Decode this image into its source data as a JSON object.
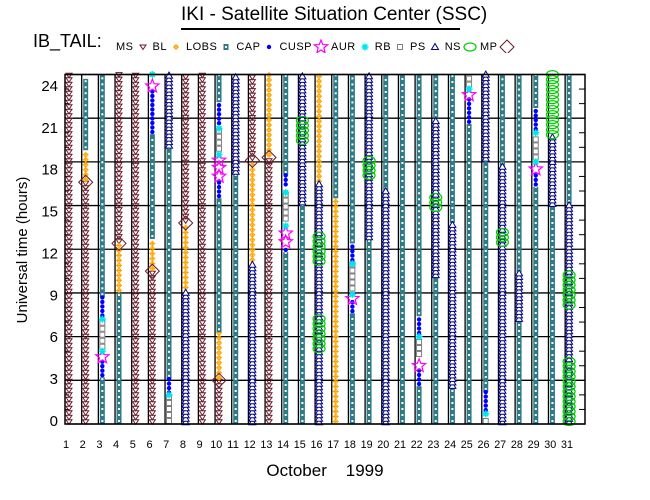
{
  "header": {
    "title": "IKI - Satellite Situation Center (SSC)",
    "legend_title": "IB_TAIL:"
  },
  "legend": [
    {
      "label": "MS",
      "region": "MS"
    },
    {
      "label": "BL",
      "region": "BL"
    },
    {
      "label": "LOBS",
      "region": "LOBS"
    },
    {
      "label": "CAP",
      "region": "CAP"
    },
    {
      "label": "CUSP",
      "region": "CUSP"
    },
    {
      "label": "AUR",
      "region": "AUR"
    },
    {
      "label": "RB",
      "region": "RB"
    },
    {
      "label": "PS",
      "region": "PS"
    },
    {
      "label": "NS",
      "region": "NS"
    },
    {
      "label": "MP",
      "region": "MP"
    }
  ],
  "colors": {
    "MS": "#6b1a2a",
    "BL": "#ffa500",
    "LOBS": "#2e7a85",
    "CAP": "#0000ff",
    "CUSP": "#ff00ff",
    "AUR": "#00e5ee",
    "RB": "#808080",
    "PS": "#000080",
    "NS": "#00cc00",
    "MP": "#6b1a2a"
  },
  "chart_data": {
    "type": "scatter",
    "title": "IKI - Satellite Situation Center (SSC)",
    "xlabel": "October    1999",
    "ylabel": "Universal time (hours)",
    "xlim": [
      1,
      31
    ],
    "ylim": [
      0,
      24
    ],
    "yticks": [
      0,
      3,
      6,
      9,
      12,
      15,
      18,
      21,
      24
    ],
    "xticks": [
      "1",
      "2",
      "3",
      "4",
      "5",
      "6",
      "7",
      "8",
      "9",
      "10",
      "11",
      "12",
      "13",
      "14",
      "15",
      "16",
      "17",
      "18",
      "19",
      "20",
      "21",
      "22",
      "23",
      "24",
      "25",
      "26",
      "27",
      "28",
      "29",
      "30",
      "31"
    ],
    "grid": true,
    "days": [
      {
        "day": 1,
        "segments": [
          [
            "MS",
            0,
            24
          ]
        ],
        "points": []
      },
      {
        "day": 2,
        "segments": [
          [
            "MS",
            0,
            16.6
          ],
          [
            "BL",
            16.6,
            18.8
          ],
          [
            "LOBS",
            18.8,
            23.7
          ]
        ],
        "points": [
          [
            "MP",
            16.6
          ]
        ]
      },
      {
        "day": 3,
        "segments": [
          [
            "LOBS",
            0,
            3.2
          ],
          [
            "CAP",
            3.2,
            4.5
          ],
          [
            "RB",
            5.1,
            7.0
          ],
          [
            "CAP",
            7.3,
            8.7
          ],
          [
            "LOBS",
            8.7,
            24
          ]
        ],
        "points": [
          [
            "CUSP",
            4.6
          ],
          [
            "AUR",
            5.0
          ],
          [
            "AUR",
            7.2
          ]
        ]
      },
      {
        "day": 4,
        "segments": [
          [
            "LOBS",
            0,
            9.0
          ],
          [
            "BL",
            9.0,
            12.4
          ],
          [
            "MS",
            12.4,
            24
          ]
        ],
        "points": [
          [
            "MP",
            12.4
          ]
        ]
      },
      {
        "day": 5,
        "segments": [
          [
            "MS",
            0,
            24
          ]
        ],
        "points": []
      },
      {
        "day": 6,
        "segments": [
          [
            "MS",
            0,
            10.5
          ],
          [
            "BL",
            10.5,
            12.7
          ],
          [
            "LOBS",
            12.7,
            19.9
          ],
          [
            "CAP",
            19.9,
            23.0
          ]
        ],
        "points": [
          [
            "MP",
            10.5
          ],
          [
            "CUSP",
            23.2
          ],
          [
            "AUR",
            24
          ]
        ]
      },
      {
        "day": 7,
        "segments": [
          [
            "RB",
            0,
            1.9
          ],
          [
            "CAP",
            2.0,
            3.1
          ],
          [
            "LOBS",
            3.1,
            19.0
          ],
          [
            "PS",
            19.0,
            24
          ]
        ],
        "points": [
          [
            "AUR",
            2.0
          ]
        ]
      },
      {
        "day": 8,
        "segments": [
          [
            "PS",
            0,
            9.2
          ],
          [
            "BL",
            9.2,
            13.8
          ],
          [
            "MS",
            13.8,
            24
          ]
        ],
        "points": [
          [
            "MP",
            13.8
          ]
        ]
      },
      {
        "day": 9,
        "segments": [
          [
            "MS",
            0,
            24
          ]
        ],
        "points": []
      },
      {
        "day": 10,
        "segments": [
          [
            "MS",
            0,
            3.0
          ],
          [
            "BL",
            3.0,
            6.3
          ],
          [
            "LOBS",
            6.3,
            15.5
          ],
          [
            "CAP",
            15.5,
            16.7
          ],
          [
            "RB",
            18.7,
            20.2
          ],
          [
            "CAP",
            20.5,
            22.1
          ],
          [
            "LOBS",
            22.1,
            24
          ]
        ],
        "points": [
          [
            "MP",
            3.0
          ],
          [
            "CUSP",
            17.0
          ],
          [
            "CUSP",
            17.6
          ],
          [
            "CUSP",
            18.1
          ],
          [
            "AUR",
            18.5
          ],
          [
            "AUR",
            20.3
          ]
        ]
      },
      {
        "day": 11,
        "segments": [
          [
            "LOBS",
            0,
            17.2
          ],
          [
            "PS",
            17.2,
            24
          ]
        ],
        "points": []
      },
      {
        "day": 12,
        "segments": [
          [
            "PS",
            0,
            11.1
          ],
          [
            "BL",
            11.1,
            18.1
          ],
          [
            "MS",
            18.1,
            24
          ]
        ],
        "points": [
          [
            "MP",
            18.1
          ]
        ]
      },
      {
        "day": 13,
        "segments": [
          [
            "MS",
            0,
            18.3
          ],
          [
            "BL",
            18.3,
            24
          ]
        ],
        "points": [
          [
            "MP",
            18.3
          ]
        ]
      },
      {
        "day": 14,
        "segments": [
          [
            "LOBS",
            0,
            11.8
          ],
          [
            "CAP",
            11.8,
            12.1
          ],
          [
            "RB",
            13.9,
            15.9
          ],
          [
            "CAP",
            16.3,
            17.1
          ],
          [
            "LOBS",
            17.1,
            24
          ]
        ],
        "points": [
          [
            "CUSP",
            12.5
          ],
          [
            "CUSP",
            13.1
          ],
          [
            "AUR",
            13.6
          ],
          [
            "AUR",
            15.9
          ]
        ]
      },
      {
        "day": 15,
        "segments": [
          [
            "LOBS",
            0,
            15.1
          ],
          [
            "PS",
            15.1,
            24
          ],
          [
            "NS",
            19.3,
            21.0
          ]
        ],
        "points": []
      },
      {
        "day": 16,
        "segments": [
          [
            "PS",
            0,
            16.5
          ],
          [
            "BL",
            16.5,
            24
          ],
          [
            "NS",
            11.0,
            12.9
          ],
          [
            "NS",
            5.0,
            7.3
          ]
        ],
        "points": []
      },
      {
        "day": 17,
        "segments": [
          [
            "BL",
            0,
            15.5
          ],
          [
            "LOBS",
            15.5,
            24
          ]
        ],
        "points": []
      },
      {
        "day": 18,
        "segments": [
          [
            "LOBS",
            0,
            7.6
          ],
          [
            "CAP",
            7.6,
            8.4
          ],
          [
            "RB",
            9.1,
            11.0
          ],
          [
            "CAP",
            11.1,
            12.4
          ],
          [
            "LOBS",
            12.4,
            24
          ]
        ],
        "points": [
          [
            "CUSP",
            8.6
          ],
          [
            "AUR",
            8.9
          ],
          [
            "AUR",
            11.0
          ]
        ]
      },
      {
        "day": 19,
        "segments": [
          [
            "LOBS",
            0,
            12.7
          ],
          [
            "PS",
            12.7,
            24
          ],
          [
            "NS",
            16.9,
            18.2
          ]
        ],
        "points": []
      },
      {
        "day": 20,
        "segments": [
          [
            "PS",
            0,
            16.0
          ],
          [
            "LOBS",
            16.0,
            24
          ]
        ],
        "points": []
      },
      {
        "day": 21,
        "segments": [
          [
            "LOBS",
            0,
            24
          ]
        ],
        "points": []
      },
      {
        "day": 22,
        "segments": [
          [
            "LOBS",
            0,
            2.6
          ],
          [
            "CAP",
            2.6,
            3.8
          ],
          [
            "RB",
            4.6,
            5.9
          ],
          [
            "CAP",
            6.1,
            7.4
          ],
          [
            "LOBS",
            7.4,
            24
          ]
        ],
        "points": [
          [
            "CUSP",
            4.0
          ],
          [
            "AUR",
            6.0
          ]
        ]
      },
      {
        "day": 23,
        "segments": [
          [
            "LOBS",
            0,
            10.1
          ],
          [
            "PS",
            10.1,
            21.0
          ],
          [
            "LOBS",
            21.0,
            24
          ],
          [
            "NS",
            14.7,
            15.9
          ]
        ],
        "points": []
      },
      {
        "day": 24,
        "segments": [
          [
            "LOBS",
            0,
            2.5
          ],
          [
            "PS",
            2.5,
            13.8
          ],
          [
            "LOBS",
            13.8,
            24
          ]
        ],
        "points": []
      },
      {
        "day": 25,
        "segments": [
          [
            "LOBS",
            0,
            20.6
          ],
          [
            "CAP",
            20.6,
            22.3
          ],
          [
            "RB",
            23.1,
            24
          ]
        ],
        "points": [
          [
            "CUSP",
            22.6
          ],
          [
            "AUR",
            23.0
          ]
        ]
      },
      {
        "day": 26,
        "segments": [
          [
            "RB",
            0,
            0.6
          ],
          [
            "CAP",
            0.8,
            2.2
          ],
          [
            "LOBS",
            2.2,
            18.1
          ],
          [
            "PS",
            18.1,
            24
          ]
        ],
        "points": [
          [
            "AUR",
            0.7
          ]
        ]
      },
      {
        "day": 27,
        "segments": [
          [
            "PS",
            0,
            17.7
          ],
          [
            "LOBS",
            17.7,
            24
          ],
          [
            "NS",
            12.3,
            13.5
          ]
        ],
        "points": []
      },
      {
        "day": 28,
        "segments": [
          [
            "LOBS",
            0,
            7.1
          ],
          [
            "PS",
            7.1,
            10.4
          ],
          [
            "LOBS",
            10.4,
            24
          ]
        ],
        "points": []
      },
      {
        "day": 29,
        "segments": [
          [
            "LOBS",
            0,
            16.3
          ],
          [
            "CAP",
            16.3,
            17.3
          ],
          [
            "RB",
            18.1,
            19.9
          ],
          [
            "CAP",
            20.1,
            21.7
          ],
          [
            "LOBS",
            21.7,
            24
          ]
        ],
        "points": [
          [
            "CUSP",
            17.5
          ],
          [
            "AUR",
            18.0
          ],
          [
            "AUR",
            20.0
          ]
        ]
      },
      {
        "day": 30,
        "segments": [
          [
            "LOBS",
            0,
            15.0
          ],
          [
            "PS",
            15.0,
            19.7
          ],
          [
            "NS",
            19.7,
            24
          ]
        ],
        "points": []
      },
      {
        "day": 31,
        "segments": [
          [
            "PS",
            0,
            15.1
          ],
          [
            "LOBS",
            15.1,
            24
          ],
          [
            "NS",
            8.0,
            10.5
          ],
          [
            "NS",
            0,
            4.5
          ]
        ],
        "points": []
      }
    ]
  }
}
